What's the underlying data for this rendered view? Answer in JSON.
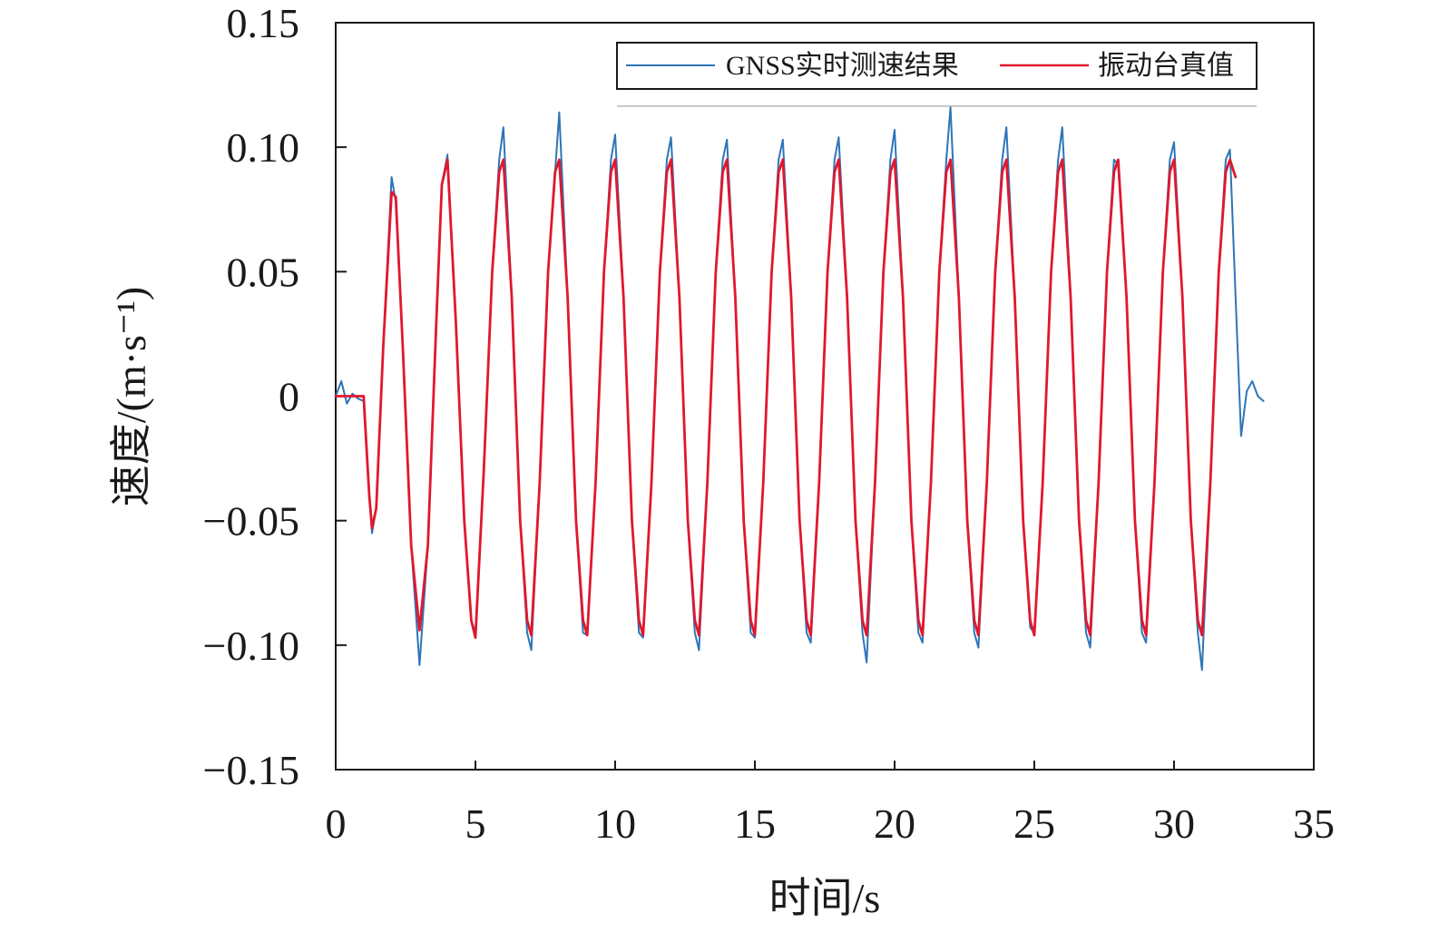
{
  "chart_data": {
    "type": "line",
    "xlabel": "时间/s",
    "ylabel": "速度/(m·s⁻¹)",
    "xlim": [
      0,
      35
    ],
    "ylim": [
      -0.15,
      0.15
    ],
    "x_ticks": [
      0,
      5,
      10,
      15,
      20,
      25,
      30,
      35
    ],
    "x_tick_labels": [
      "0",
      "5",
      "10",
      "15",
      "20",
      "25",
      "30",
      "35"
    ],
    "y_ticks": [
      0.15,
      0.1,
      0.05,
      0,
      -0.05,
      -0.1,
      -0.15
    ],
    "y_tick_labels": [
      "0.15",
      "0.10",
      "0.05",
      "0",
      "−0.05",
      "−0.10",
      "−0.15"
    ],
    "grid": false,
    "legend_position": "top-right",
    "series": [
      {
        "name": "GNSS实时测速结果",
        "color": "#2e75b6",
        "x": [
          0.0,
          0.2,
          0.4,
          0.6,
          0.8,
          1.0,
          1.2,
          1.3,
          1.45,
          1.7,
          2.0,
          2.15,
          2.4,
          2.7,
          3.0,
          3.3,
          3.6,
          3.8,
          4.0,
          4.3,
          4.6,
          4.85,
          5.0,
          5.3,
          5.6,
          5.85,
          6.0,
          6.3,
          6.6,
          6.85,
          7.0,
          7.3,
          7.6,
          7.85,
          8.0,
          8.3,
          8.6,
          8.85,
          9.0,
          9.3,
          9.6,
          9.85,
          10.0,
          10.3,
          10.6,
          10.85,
          11.0,
          11.3,
          11.6,
          11.85,
          12.0,
          12.3,
          12.6,
          12.85,
          13.0,
          13.3,
          13.6,
          13.85,
          14.0,
          14.3,
          14.6,
          14.85,
          15.0,
          15.3,
          15.6,
          15.85,
          16.0,
          16.3,
          16.6,
          16.85,
          17.0,
          17.3,
          17.6,
          17.85,
          18.0,
          18.3,
          18.6,
          18.85,
          19.0,
          19.3,
          19.6,
          19.85,
          20.0,
          20.3,
          20.6,
          20.85,
          21.0,
          21.3,
          21.6,
          21.85,
          22.0,
          22.3,
          22.6,
          22.85,
          23.0,
          23.3,
          23.6,
          23.85,
          24.0,
          24.3,
          24.6,
          24.85,
          25.0,
          25.3,
          25.6,
          25.85,
          26.0,
          26.3,
          26.6,
          26.85,
          27.0,
          27.3,
          27.6,
          27.85,
          28.0,
          28.3,
          28.6,
          28.85,
          29.0,
          29.3,
          29.6,
          29.85,
          30.0,
          30.3,
          30.6,
          30.85,
          31.0,
          31.3,
          31.6,
          31.85,
          32.0,
          32.2,
          32.4,
          32.6,
          32.8,
          33.0,
          33.2
        ],
        "values": [
          0.0,
          0.006,
          -0.003,
          0.001,
          -0.001,
          -0.002,
          -0.04,
          -0.055,
          -0.045,
          0.02,
          0.088,
          0.078,
          0.02,
          -0.06,
          -0.108,
          -0.06,
          0.03,
          0.085,
          0.097,
          0.03,
          -0.05,
          -0.09,
          -0.095,
          -0.03,
          0.05,
          0.095,
          0.108,
          0.04,
          -0.05,
          -0.095,
          -0.102,
          -0.035,
          0.05,
          0.09,
          0.114,
          0.04,
          -0.05,
          -0.095,
          -0.096,
          -0.035,
          0.05,
          0.095,
          0.105,
          0.04,
          -0.05,
          -0.095,
          -0.097,
          -0.035,
          0.05,
          0.095,
          0.104,
          0.04,
          -0.05,
          -0.095,
          -0.102,
          -0.035,
          0.05,
          0.095,
          0.103,
          0.04,
          -0.05,
          -0.095,
          -0.097,
          -0.035,
          0.05,
          0.095,
          0.103,
          0.04,
          -0.05,
          -0.095,
          -0.099,
          -0.035,
          0.05,
          0.095,
          0.104,
          0.04,
          -0.05,
          -0.095,
          -0.107,
          -0.035,
          0.05,
          0.095,
          0.107,
          0.04,
          -0.05,
          -0.095,
          -0.099,
          -0.035,
          0.05,
          0.095,
          0.116,
          0.04,
          -0.05,
          -0.095,
          -0.101,
          -0.035,
          0.05,
          0.095,
          0.108,
          0.04,
          -0.05,
          -0.093,
          -0.095,
          -0.035,
          0.05,
          0.095,
          0.108,
          0.04,
          -0.05,
          -0.095,
          -0.101,
          -0.035,
          0.05,
          0.095,
          0.093,
          0.04,
          -0.05,
          -0.095,
          -0.099,
          -0.035,
          0.05,
          0.095,
          0.102,
          0.04,
          -0.05,
          -0.095,
          -0.11,
          -0.035,
          0.05,
          0.095,
          0.099,
          0.04,
          -0.016,
          0.002,
          0.006,
          0.0,
          -0.002
        ]
      },
      {
        "name": "振动台真值",
        "color": "#e0182e",
        "x": [
          0.0,
          0.2,
          0.4,
          0.6,
          0.8,
          1.0,
          1.05,
          1.2,
          1.3,
          1.45,
          1.7,
          2.0,
          2.15,
          2.4,
          2.7,
          3.0,
          3.3,
          3.6,
          3.8,
          4.0,
          4.3,
          4.6,
          4.85,
          5.0,
          5.3,
          5.6,
          5.85,
          6.0,
          6.3,
          6.6,
          6.85,
          7.0,
          7.3,
          7.6,
          7.85,
          8.0,
          8.3,
          8.6,
          8.85,
          9.0,
          9.3,
          9.6,
          9.85,
          10.0,
          10.3,
          10.6,
          10.85,
          11.0,
          11.3,
          11.6,
          11.85,
          12.0,
          12.3,
          12.6,
          12.85,
          13.0,
          13.3,
          13.6,
          13.85,
          14.0,
          14.3,
          14.6,
          14.85,
          15.0,
          15.3,
          15.6,
          15.85,
          16.0,
          16.3,
          16.6,
          16.85,
          17.0,
          17.3,
          17.6,
          17.85,
          18.0,
          18.3,
          18.6,
          18.85,
          19.0,
          19.3,
          19.6,
          19.85,
          20.0,
          20.3,
          20.6,
          20.85,
          21.0,
          21.3,
          21.6,
          21.85,
          22.0,
          22.3,
          22.6,
          22.85,
          23.0,
          23.3,
          23.6,
          23.85,
          24.0,
          24.3,
          24.6,
          24.85,
          25.0,
          25.3,
          25.6,
          25.85,
          26.0,
          26.3,
          26.6,
          26.85,
          27.0,
          27.3,
          27.6,
          27.85,
          28.0,
          28.3,
          28.6,
          28.85,
          29.0,
          29.3,
          29.6,
          29.85,
          30.0,
          30.3,
          30.6,
          30.85,
          31.0,
          31.3,
          31.6,
          31.85,
          32.0,
          32.2
        ],
        "values": [
          0.0,
          0.0,
          0.0,
          0.0,
          0.0,
          0.0,
          -0.01,
          -0.04,
          -0.053,
          -0.045,
          0.02,
          0.082,
          0.08,
          0.02,
          -0.06,
          -0.094,
          -0.06,
          0.03,
          0.085,
          0.095,
          0.03,
          -0.05,
          -0.09,
          -0.097,
          -0.03,
          0.05,
          0.09,
          0.095,
          0.04,
          -0.05,
          -0.09,
          -0.096,
          -0.035,
          0.05,
          0.09,
          0.095,
          0.04,
          -0.05,
          -0.09,
          -0.096,
          -0.035,
          0.05,
          0.09,
          0.095,
          0.04,
          -0.05,
          -0.09,
          -0.096,
          -0.035,
          0.05,
          0.09,
          0.095,
          0.04,
          -0.05,
          -0.09,
          -0.096,
          -0.035,
          0.05,
          0.09,
          0.095,
          0.04,
          -0.05,
          -0.09,
          -0.096,
          -0.035,
          0.05,
          0.09,
          0.095,
          0.04,
          -0.05,
          -0.09,
          -0.096,
          -0.035,
          0.05,
          0.09,
          0.095,
          0.04,
          -0.05,
          -0.09,
          -0.096,
          -0.035,
          0.05,
          0.09,
          0.095,
          0.04,
          -0.05,
          -0.09,
          -0.096,
          -0.035,
          0.05,
          0.09,
          0.095,
          0.04,
          -0.05,
          -0.09,
          -0.096,
          -0.035,
          0.05,
          0.09,
          0.095,
          0.04,
          -0.05,
          -0.09,
          -0.096,
          -0.035,
          0.05,
          0.09,
          0.095,
          0.04,
          -0.05,
          -0.09,
          -0.096,
          -0.035,
          0.05,
          0.09,
          0.095,
          0.04,
          -0.05,
          -0.09,
          -0.096,
          -0.035,
          0.05,
          0.09,
          0.095,
          0.04,
          -0.05,
          -0.09,
          -0.096,
          -0.035,
          0.05,
          0.09,
          0.095,
          0.088
        ]
      }
    ]
  }
}
